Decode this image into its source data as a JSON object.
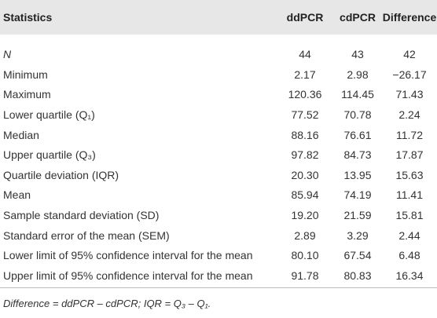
{
  "table": {
    "header": [
      "Statistics",
      "ddPCR",
      "cdPCR",
      "Difference"
    ],
    "rows": [
      [
        "N",
        "44",
        "43",
        "42"
      ],
      [
        "Minimum",
        "2.17",
        "2.98",
        "−26.17"
      ],
      [
        "Maximum",
        "120.36",
        "114.45",
        "71.43"
      ],
      [
        "Lower quartile (Q₁)",
        "77.52",
        "70.78",
        "2.24"
      ],
      [
        "Median",
        "88.16",
        "76.61",
        "11.72"
      ],
      [
        "Upper quartile (Q₃)",
        "97.82",
        "84.73",
        "17.87"
      ],
      [
        "Quartile deviation (IQR)",
        "20.30",
        "13.95",
        "15.63"
      ],
      [
        "Mean",
        "85.94",
        "74.19",
        "11.41"
      ],
      [
        "Sample standard deviation (SD)",
        "19.20",
        "21.59",
        "15.81"
      ],
      [
        "Standard error of the mean (SEM)",
        "2.89",
        "3.29",
        "2.44"
      ],
      [
        "Lower limit of 95% confidence interval for the mean",
        "80.10",
        "67.54",
        "6.48"
      ],
      [
        "Upper limit of 95% confidence interval for the mean",
        "91.78",
        "80.83",
        "16.34"
      ]
    ],
    "footnote": "Difference = ddPCR – cdPCR; IQR = Q₃ – Q₁."
  }
}
